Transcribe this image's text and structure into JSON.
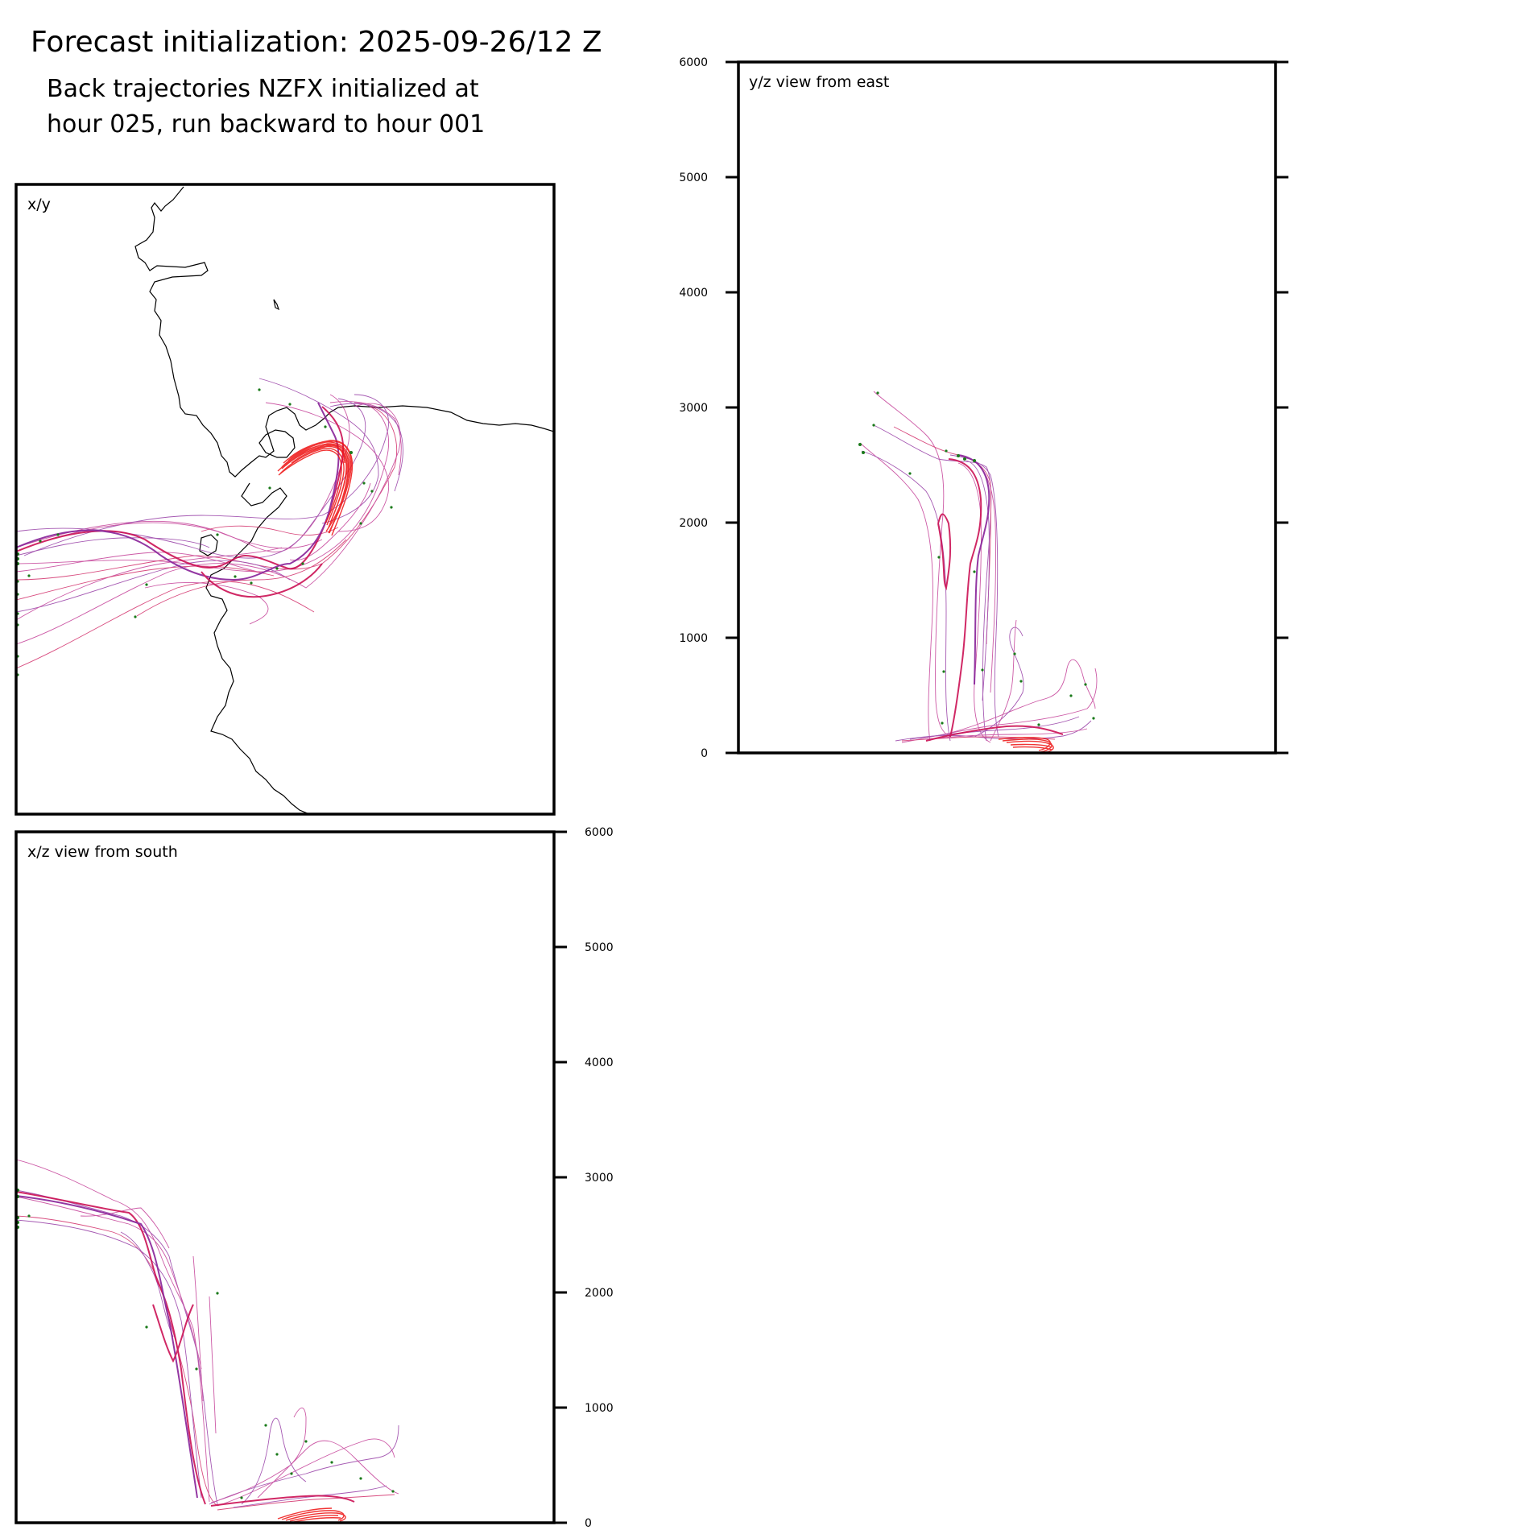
{
  "header": {
    "main_title": "Forecast initialization: 2025-09-26/12 Z",
    "subtitle_line1": "Back trajectories NZFX initialized at",
    "subtitle_line2": "hour 025, run backward to hour 001"
  },
  "colors": {
    "trajectory_red": "#ee1111",
    "trajectory_crimson": "#cc1155",
    "trajectory_magenta": "#bb2288",
    "trajectory_purple": "#882299",
    "start_point_green": "#1a7a1a",
    "coastline": "#000000",
    "frame": "#000000"
  },
  "chart_data": [
    {
      "type": "line",
      "panel": "x/y",
      "title": "x/y",
      "description_kind": "map-plan-view",
      "xlabel": "",
      "ylabel": "",
      "grid": false,
      "series": [
        {
          "name": "trajectory-bundle-red",
          "points": []
        },
        {
          "name": "trajectory-bundle-magenta",
          "points": []
        }
      ]
    },
    {
      "type": "line",
      "panel": "y/z",
      "title": "y/z view from east",
      "xlabel": "",
      "ylabel": "",
      "ylim": [
        0,
        6000
      ],
      "yticks": [
        "0",
        "1000",
        "2000",
        "3000",
        "4000",
        "5000",
        "6000"
      ],
      "ytick_side": "left",
      "grid": false
    },
    {
      "type": "line",
      "panel": "x/z",
      "title": "x/z view from south",
      "xlabel": "",
      "ylabel": "",
      "ylim": [
        0,
        6000
      ],
      "yticks": [
        "0",
        "1000",
        "2000",
        "3000",
        "4000",
        "5000",
        "6000"
      ],
      "ytick_side": "right",
      "grid": false
    }
  ]
}
